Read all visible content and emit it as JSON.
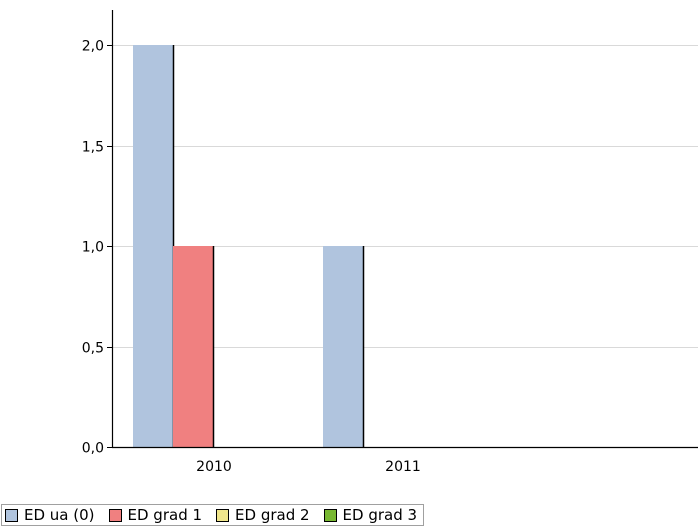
{
  "colors": {
    "ed_ua_0": "#b0c4de",
    "ed_grad_1": "#f08080",
    "ed_grad_2": "#f0e68c",
    "ed_grad_3": "#78b832",
    "grid": "#d9d9d9",
    "axis": "#000000"
  },
  "chart_data": {
    "type": "bar",
    "title": "",
    "xlabel": "",
    "ylabel": "",
    "categories": [
      "2010",
      "2011"
    ],
    "ylim": [
      0,
      2
    ],
    "yticks": [
      "0,0",
      "0,5",
      "1,0",
      "1,5",
      "2,0"
    ],
    "ytick_values": [
      0,
      0.5,
      1,
      1.5,
      2
    ],
    "grid": true,
    "legend_position": "bottom-left",
    "series": [
      {
        "name": "ED ua (0)",
        "color_key": "ed_ua_0",
        "values": [
          2,
          1
        ]
      },
      {
        "name": "ED grad 1",
        "color_key": "ed_grad_1",
        "values": [
          1,
          0
        ]
      },
      {
        "name": "ED grad 2",
        "color_key": "ed_grad_2",
        "values": [
          0,
          0
        ]
      },
      {
        "name": "ED grad 3",
        "color_key": "ed_grad_3",
        "values": [
          0,
          0
        ]
      }
    ]
  }
}
